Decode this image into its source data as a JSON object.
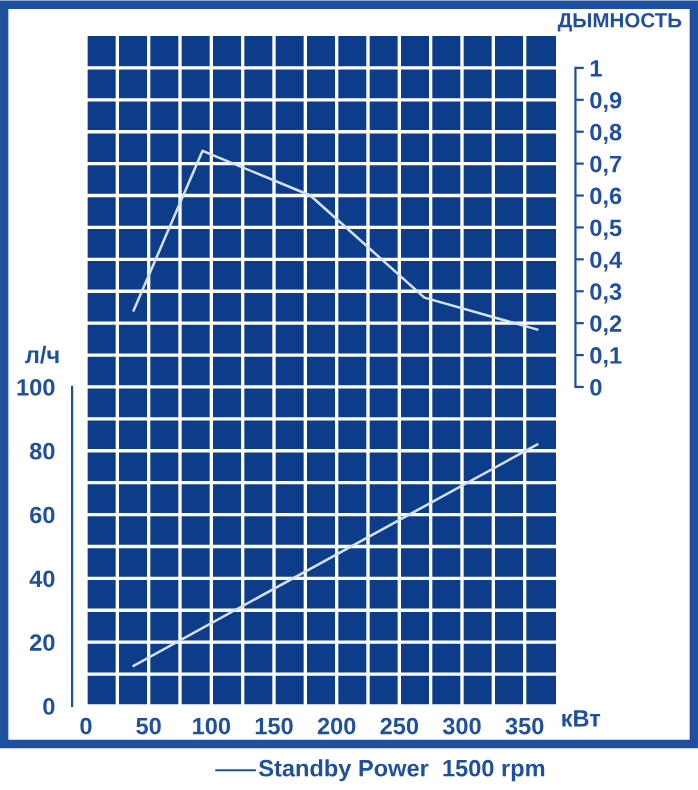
{
  "chart_data": {
    "type": "line",
    "xlabel": "кВт",
    "ylabel": "л/ч",
    "y2label": "ДЫМНОСТЬ",
    "series": [
      {
        "color": "#d6e2f5",
        "x": [
          38,
          360
        ],
        "values": [
          12.6,
          82
        ]
      },
      {
        "color": "#d6e2f5",
        "axis": "y2",
        "x": [
          38,
          93,
          179,
          270,
          360
        ],
        "values": [
          0.24,
          0.74,
          0.6,
          0.28,
          0.18
        ]
      }
    ],
    "xlim": [
      0,
      375
    ],
    "xticks": [
      0,
      {
        "value": 25,
        "label": null
      },
      50,
      {
        "value": 75,
        "label": null
      },
      100,
      {
        "value": 125,
        "label": null
      },
      150,
      {
        "value": 175,
        "label": null
      },
      200,
      {
        "value": 225,
        "label": null
      },
      250,
      {
        "value": 275,
        "label": null
      },
      300,
      {
        "value": 325,
        "label": null
      },
      350
    ],
    "ylim": [
      0,
      210
    ],
    "yticks": [
      0,
      {
        "value": 10,
        "label": null
      },
      20,
      {
        "value": 30,
        "label": null
      },
      40,
      {
        "value": 50,
        "label": null
      },
      60,
      {
        "value": 70,
        "label": null
      },
      80,
      {
        "value": 90,
        "label": null
      },
      100,
      {
        "value": 110,
        "label": null
      },
      {
        "value": 120,
        "label": null
      },
      {
        "value": 130,
        "label": null
      },
      {
        "value": 140,
        "label": null
      },
      {
        "value": 150,
        "label": null
      },
      {
        "value": 160,
        "label": null
      },
      {
        "value": 170,
        "label": null
      },
      {
        "value": 180,
        "label": null
      },
      {
        "value": 190,
        "label": null
      },
      {
        "value": 200,
        "label": null
      }
    ],
    "y2lim": [
      -1.0,
      1.1
    ],
    "y2ticks": [
      0,
      {
        "value": 0.1,
        "label": "0,1"
      },
      {
        "value": 0.2,
        "label": "0,2"
      },
      {
        "value": 0.3,
        "label": "0,3"
      },
      {
        "value": 0.4,
        "label": "0,4"
      },
      {
        "value": 0.5,
        "label": "0,5"
      },
      {
        "value": 0.6,
        "label": "0,6"
      },
      {
        "value": 0.7,
        "label": "0,7"
      },
      {
        "value": 0.8,
        "label": "0,8"
      },
      {
        "value": 0.9,
        "label": "0,9"
      },
      1
    ],
    "grid": true,
    "annotations": [
      "Standby Power  1500 rpm"
    ]
  }
}
